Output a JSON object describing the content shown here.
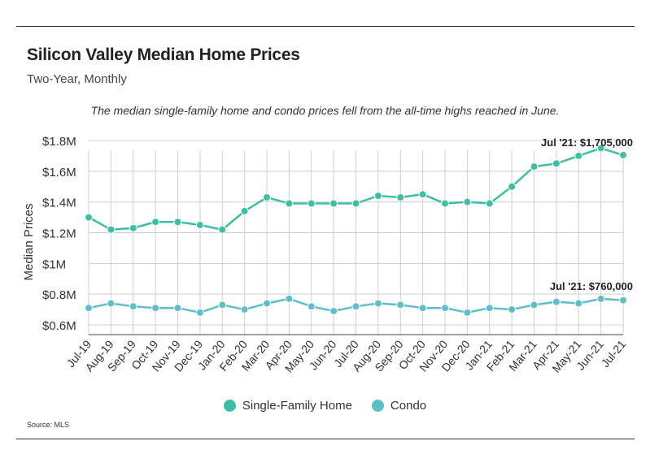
{
  "header": {
    "title": "Silicon Valley Median Home Prices",
    "subtitle": "Two-Year, Monthly"
  },
  "note": "The median single-family home and condo prices fell from the all-time highs reached in June.",
  "source": "Source:  MLS",
  "colors": {
    "single_family": "#3dbfa3",
    "condo": "#5fbfc9",
    "grid": "#cfcfcf",
    "axis": "#333333"
  },
  "chart_data": {
    "type": "line",
    "title": "Silicon Valley Median Home Prices",
    "subtitle": "Two-Year, Monthly",
    "xlabel": "",
    "ylabel": "Median Prices",
    "ylim": [
      0.5,
      1.8
    ],
    "yticks": [
      {
        "value": 0.6,
        "label": "$0.6M"
      },
      {
        "value": 0.8,
        "label": "$0.8M"
      },
      {
        "value": 1.0,
        "label": "$1M"
      },
      {
        "value": 1.2,
        "label": "$1.2M"
      },
      {
        "value": 1.4,
        "label": "$1.4M"
      },
      {
        "value": 1.6,
        "label": "$1.6M"
      },
      {
        "value": 1.8,
        "label": "$1.8M"
      }
    ],
    "categories": [
      "Jul-19",
      "Aug-19",
      "Sep-19",
      "Oct-19",
      "Nov-19",
      "Dec-19",
      "Jan-20",
      "Feb-20",
      "Mar-20",
      "Apr-20",
      "May-20",
      "Jun-20",
      "Jul-20",
      "Aug-20",
      "Sep-20",
      "Oct-20",
      "Nov-20",
      "Dec-20",
      "Jan-21",
      "Feb-21",
      "Mar-21",
      "Apr-21",
      "May-21",
      "Jun-21",
      "Jul-21"
    ],
    "series": [
      {
        "name": "Single-Family Home",
        "values": [
          1.3,
          1.22,
          1.23,
          1.27,
          1.27,
          1.25,
          1.22,
          1.34,
          1.43,
          1.39,
          1.39,
          1.39,
          1.39,
          1.44,
          1.43,
          1.45,
          1.39,
          1.4,
          1.39,
          1.5,
          1.63,
          1.65,
          1.7,
          1.75,
          1.705
        ],
        "annotation": "Jul '21: $1,705,000"
      },
      {
        "name": "Condo",
        "values": [
          0.71,
          0.74,
          0.72,
          0.71,
          0.71,
          0.68,
          0.73,
          0.7,
          0.74,
          0.77,
          0.72,
          0.69,
          0.72,
          0.74,
          0.73,
          0.71,
          0.71,
          0.68,
          0.71,
          0.7,
          0.73,
          0.75,
          0.74,
          0.77,
          0.76
        ],
        "annotation": "Jul '21: $760,000"
      }
    ],
    "legend": "bottom-center"
  }
}
